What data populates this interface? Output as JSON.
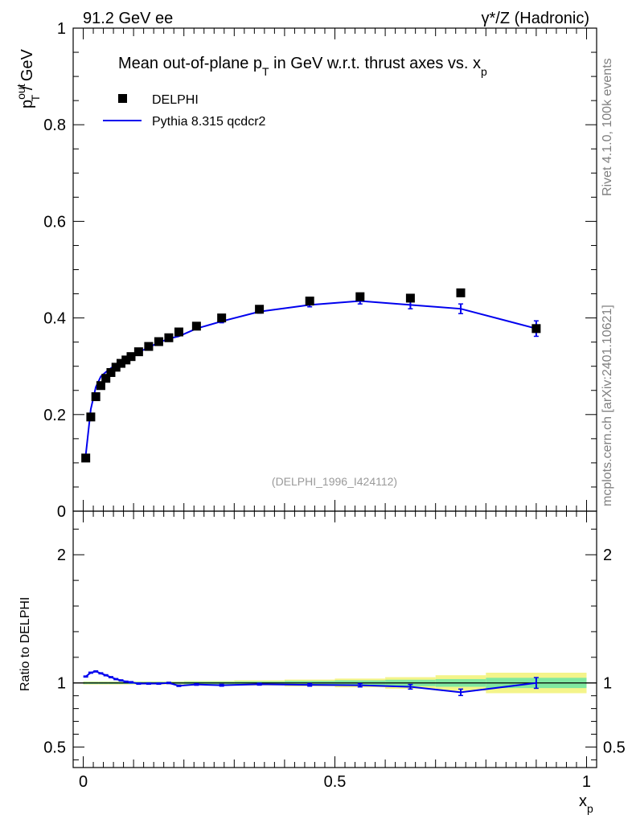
{
  "header": {
    "left": "91.2 GeV ee",
    "right": "γ*/Z (Hadronic)"
  },
  "side_labels": {
    "rivet": "Rivet 4.1.0,  100k events",
    "mcplots": "mcplots.cern.ch [arXiv:2401.10621]"
  },
  "colors": {
    "data": "#000000",
    "mc": "#0000ee",
    "band_inner": "#80e8a0",
    "band_outer": "#f4f48a",
    "ref_line": "#7fd000"
  },
  "chart_data": [
    {
      "type": "scatter",
      "title": "Mean out-of-plane p_T in GeV w.r.t. thrust axes vs. x_p",
      "title_parts": {
        "a": "Mean out-of-plane p",
        "a_sub": "T",
        "b": " in GeV w.r.t. thrust axes vs. x",
        "b_sub": "p"
      },
      "analysis_tag": "(DELPHI_1996_I424112)",
      "xlabel": "x_p",
      "xlabel_parts": {
        "base": "x",
        "sub": "p"
      },
      "ylabel": "p_T^out / GeV",
      "ylabel_parts": {
        "base": "p",
        "sup": "out",
        "sub": "T",
        "rest": " / GeV"
      },
      "xlim": [
        -0.02,
        1.02
      ],
      "ylim": [
        0,
        1
      ],
      "x_ticks": [
        0,
        0.5,
        1
      ],
      "x_tick_labels": [
        "0",
        "0.5",
        "1"
      ],
      "y_ticks": [
        0,
        0.2,
        0.4,
        0.6,
        0.8,
        1
      ],
      "y_tick_labels": [
        "0",
        "0.2",
        "0.4",
        "0.6",
        "0.8",
        "1"
      ],
      "legend": [
        {
          "label": "DELPHI",
          "kind": "marker"
        },
        {
          "label": "Pythia 8.315 qcdcr2",
          "kind": "line"
        }
      ],
      "series": [
        {
          "name": "DELPHI",
          "x": [
            0.005,
            0.015,
            0.025,
            0.035,
            0.045,
            0.055,
            0.065,
            0.075,
            0.085,
            0.095,
            0.11,
            0.13,
            0.15,
            0.17,
            0.19,
            0.225,
            0.275,
            0.35,
            0.45,
            0.55,
            0.65,
            0.75,
            0.9
          ],
          "y": [
            0.11,
            0.195,
            0.237,
            0.26,
            0.275,
            0.287,
            0.298,
            0.306,
            0.313,
            0.32,
            0.33,
            0.341,
            0.351,
            0.359,
            0.371,
            0.383,
            0.4,
            0.418,
            0.435,
            0.444,
            0.441,
            0.452,
            0.378
          ]
        },
        {
          "name": "Pythia 8.315 qcdcr2",
          "x": [
            0.005,
            0.015,
            0.025,
            0.035,
            0.045,
            0.055,
            0.065,
            0.075,
            0.085,
            0.095,
            0.11,
            0.13,
            0.15,
            0.17,
            0.19,
            0.225,
            0.275,
            0.35,
            0.45,
            0.55,
            0.65,
            0.75,
            0.9
          ],
          "y": [
            0.116,
            0.211,
            0.257,
            0.279,
            0.288,
            0.296,
            0.302,
            0.309,
            0.315,
            0.322,
            0.329,
            0.339,
            0.349,
            0.357,
            0.362,
            0.378,
            0.393,
            0.413,
            0.427,
            0.435,
            0.427,
            0.419,
            0.378
          ],
          "yerr": [
            0.001,
            0.001,
            0.001,
            0.001,
            0.001,
            0.001,
            0.001,
            0.001,
            0.001,
            0.002,
            0.002,
            0.002,
            0.002,
            0.002,
            0.002,
            0.002,
            0.003,
            0.003,
            0.004,
            0.006,
            0.008,
            0.01,
            0.016
          ]
        }
      ]
    },
    {
      "type": "line",
      "title": "",
      "ylabel": "Ratio to DELPHI",
      "xlim": [
        -0.02,
        1.02
      ],
      "ylim": [
        0.34,
        2.34
      ],
      "y_ticks": [
        0.5,
        1,
        2
      ],
      "y_tick_labels": [
        "0.5",
        "1",
        "2"
      ],
      "x_ticks": [
        0,
        0.5,
        1
      ],
      "x_tick_labels": [
        "0",
        "0.5",
        "1"
      ],
      "x_edges": [
        0,
        0.01,
        0.02,
        0.03,
        0.04,
        0.05,
        0.06,
        0.07,
        0.08,
        0.09,
        0.1,
        0.12,
        0.14,
        0.16,
        0.18,
        0.2,
        0.25,
        0.3,
        0.4,
        0.5,
        0.6,
        0.7,
        0.8,
        1.0
      ],
      "band_inner": [
        0.008,
        0.008,
        0.008,
        0.008,
        0.008,
        0.008,
        0.008,
        0.008,
        0.008,
        0.008,
        0.008,
        0.008,
        0.008,
        0.008,
        0.008,
        0.01,
        0.01,
        0.012,
        0.016,
        0.02,
        0.025,
        0.03,
        0.04
      ],
      "band_outer": [
        0.012,
        0.012,
        0.012,
        0.012,
        0.012,
        0.012,
        0.012,
        0.012,
        0.012,
        0.012,
        0.012,
        0.012,
        0.012,
        0.012,
        0.012,
        0.015,
        0.015,
        0.02,
        0.026,
        0.034,
        0.045,
        0.06,
        0.08
      ],
      "series": [
        {
          "name": "Pythia 8.315 qcdcr2 / DELPHI",
          "x": [
            0.005,
            0.015,
            0.025,
            0.035,
            0.045,
            0.055,
            0.065,
            0.075,
            0.085,
            0.095,
            0.11,
            0.13,
            0.15,
            0.17,
            0.19,
            0.225,
            0.275,
            0.35,
            0.45,
            0.55,
            0.65,
            0.75,
            0.9
          ],
          "y": [
            1.05,
            1.08,
            1.09,
            1.075,
            1.06,
            1.045,
            1.03,
            1.02,
            1.01,
            1.005,
            0.995,
            0.995,
            0.995,
            1.0,
            0.978,
            0.988,
            0.982,
            0.99,
            0.985,
            0.982,
            0.97,
            0.927,
            1.0
          ],
          "yerr": [
            0.004,
            0.004,
            0.004,
            0.004,
            0.004,
            0.004,
            0.004,
            0.004,
            0.004,
            0.005,
            0.005,
            0.005,
            0.005,
            0.005,
            0.005,
            0.006,
            0.007,
            0.007,
            0.01,
            0.013,
            0.018,
            0.025,
            0.042
          ]
        }
      ]
    }
  ]
}
